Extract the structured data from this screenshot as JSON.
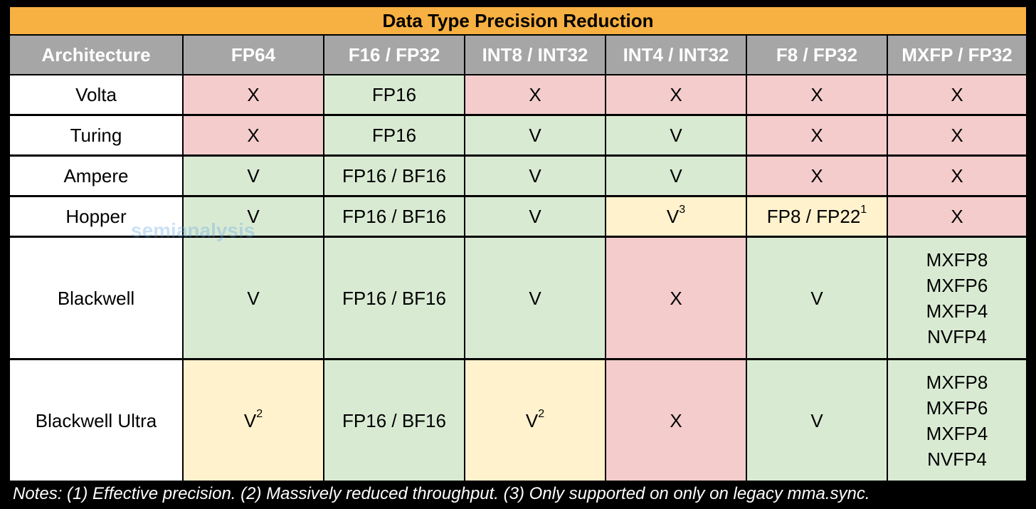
{
  "title": "Data Type Precision Reduction",
  "colors": {
    "title": "#f7b042",
    "header": "#a6a6a6",
    "label": "#ffffff",
    "red": "#f4cccc",
    "green": "#d9ead3",
    "yellow": "#fff2cc"
  },
  "table": {
    "header": [
      "Architecture",
      "FP64",
      "F16 / FP32",
      "INT8 / INT32",
      "INT4 / INT32",
      "F8 / FP32",
      "MXFP / FP32"
    ],
    "rows": [
      {
        "label": "Volta",
        "cells": [
          {
            "text": "X",
            "color": "red"
          },
          {
            "text": "FP16",
            "color": "green"
          },
          {
            "text": "X",
            "color": "red"
          },
          {
            "text": "X",
            "color": "red"
          },
          {
            "text": "X",
            "color": "red"
          },
          {
            "text": "X",
            "color": "red"
          }
        ]
      },
      {
        "label": "Turing",
        "cells": [
          {
            "text": "X",
            "color": "red"
          },
          {
            "text": "FP16",
            "color": "green"
          },
          {
            "text": "V",
            "color": "green"
          },
          {
            "text": "V",
            "color": "green"
          },
          {
            "text": "X",
            "color": "red"
          },
          {
            "text": "X",
            "color": "red"
          }
        ]
      },
      {
        "label": "Ampere",
        "cells": [
          {
            "text": "V",
            "color": "green"
          },
          {
            "text": "FP16 / BF16",
            "color": "green"
          },
          {
            "text": "V",
            "color": "green"
          },
          {
            "text": "V",
            "color": "green"
          },
          {
            "text": "X",
            "color": "red"
          },
          {
            "text": "X",
            "color": "red"
          }
        ]
      },
      {
        "label": "Hopper",
        "cells": [
          {
            "text": "V",
            "color": "green"
          },
          {
            "text": "FP16 / BF16",
            "color": "green"
          },
          {
            "text": "V",
            "color": "green"
          },
          {
            "text": "V",
            "sup": "3",
            "color": "yellow"
          },
          {
            "text": "FP8 / FP22",
            "sup": "1",
            "color": "yellow"
          },
          {
            "text": "X",
            "color": "red"
          }
        ]
      },
      {
        "label": "Blackwell",
        "cells": [
          {
            "text": "V",
            "color": "green"
          },
          {
            "text": "FP16 / BF16",
            "color": "green"
          },
          {
            "text": "V",
            "color": "green"
          },
          {
            "text": "X",
            "color": "red"
          },
          {
            "text": "V",
            "color": "green"
          },
          {
            "lines": [
              "MXFP8",
              "MXFP6",
              "MXFP4",
              "NVFP4"
            ],
            "color": "green"
          }
        ]
      },
      {
        "label": "Blackwell Ultra",
        "cells": [
          {
            "text": "V",
            "sup": "2",
            "color": "yellow"
          },
          {
            "text": "FP16 / BF16",
            "color": "green"
          },
          {
            "text": "V",
            "sup": "2",
            "color": "yellow"
          },
          {
            "text": "X",
            "color": "red"
          },
          {
            "text": "V",
            "color": "green"
          },
          {
            "lines": [
              "MXFP8",
              "MXFP6",
              "MXFP4",
              "NVFP4"
            ],
            "color": "green"
          }
        ]
      }
    ]
  },
  "notes": "Notes: (1) Effective precision. (2) Massively reduced throughput. (3) Only supported on only on legacy mma.sync.",
  "watermark": "semianalysis"
}
